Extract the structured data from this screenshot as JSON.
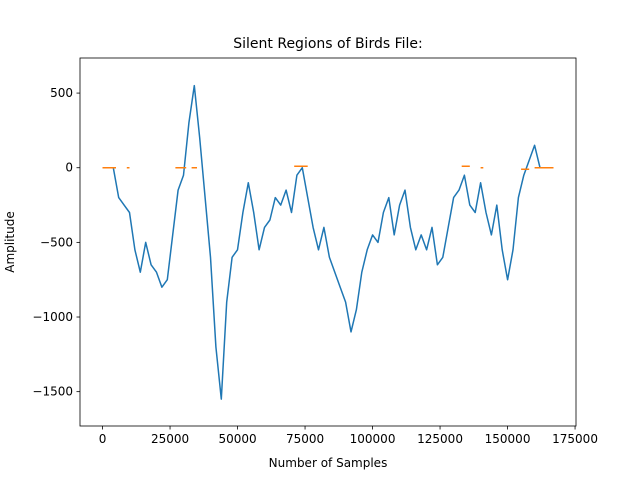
{
  "chart_data": {
    "type": "line",
    "title": "Silent Regions of Birds File:",
    "xlabel": "Number of Samples",
    "ylabel": "Amplitude",
    "xlim": [
      -8350,
      175350
    ],
    "ylim": [
      -1730,
      735
    ],
    "xticks": [
      0,
      25000,
      50000,
      75000,
      100000,
      125000,
      150000,
      175000
    ],
    "yticks": [
      {
        "value": -1500,
        "label": "−1500"
      },
      {
        "value": -1000,
        "label": "−1000"
      },
      {
        "value": -500,
        "label": "−500"
      },
      0,
      500
    ],
    "series": [
      {
        "color": "#1f77b4",
        "x": [
          0,
          2000,
          4000,
          6000,
          8000,
          10000,
          12000,
          14000,
          16000,
          18000,
          20000,
          22000,
          24000,
          26000,
          28000,
          30000,
          32000,
          34000,
          36000,
          38000,
          40000,
          42000,
          44000,
          46000,
          48000,
          50000,
          52000,
          54000,
          56000,
          58000,
          60000,
          62000,
          64000,
          66000,
          68000,
          70000,
          72000,
          74000,
          76000,
          78000,
          80000,
          82000,
          84000,
          86000,
          88000,
          90000,
          92000,
          94000,
          96000,
          98000,
          100000,
          102000,
          104000,
          106000,
          108000,
          110000,
          112000,
          114000,
          116000,
          118000,
          120000,
          122000,
          124000,
          126000,
          128000,
          130000,
          132000,
          134000,
          136000,
          138000,
          140000,
          142000,
          144000,
          146000,
          148000,
          150000,
          152000,
          154000,
          156000,
          158000,
          160000,
          162000,
          164000,
          166000
        ],
        "values": [
          0,
          0,
          0,
          -200,
          -250,
          -300,
          -550,
          -700,
          -500,
          -650,
          -700,
          -800,
          -750,
          -450,
          -150,
          -50,
          300,
          550,
          200,
          -200,
          -600,
          -1200,
          -1550,
          -900,
          -600,
          -550,
          -300,
          -100,
          -300,
          -550,
          -400,
          -350,
          -200,
          -250,
          -150,
          -300,
          -50,
          0,
          -200,
          -400,
          -550,
          -400,
          -600,
          -700,
          -800,
          -900,
          -1100,
          -950,
          -700,
          -550,
          -450,
          -500,
          -300,
          -200,
          -450,
          -250,
          -150,
          -400,
          -550,
          -450,
          -550,
          -400,
          -650,
          -600,
          -400,
          -200,
          -150,
          -50,
          -250,
          -300,
          -100,
          -300,
          -450,
          -250,
          -550,
          -750,
          -550,
          -200,
          -50,
          50,
          150,
          0,
          0,
          0
        ]
      },
      {
        "color": "#ff7f0e",
        "x": [
          0,
          5000,
          7000,
          9000,
          10000,
          20000,
          27000,
          31000,
          32000,
          33000,
          35000,
          50000,
          71000,
          76000,
          100000,
          133000,
          136000,
          138000,
          140000,
          141000,
          150000,
          155000,
          158000,
          159000,
          160000,
          167000
        ],
        "values": [
          0,
          0,
          null,
          0,
          0,
          null,
          0,
          0,
          null,
          0,
          0,
          null,
          10,
          10,
          null,
          10,
          10,
          null,
          0,
          0,
          null,
          -10,
          -10,
          null,
          0,
          0
        ]
      }
    ]
  }
}
